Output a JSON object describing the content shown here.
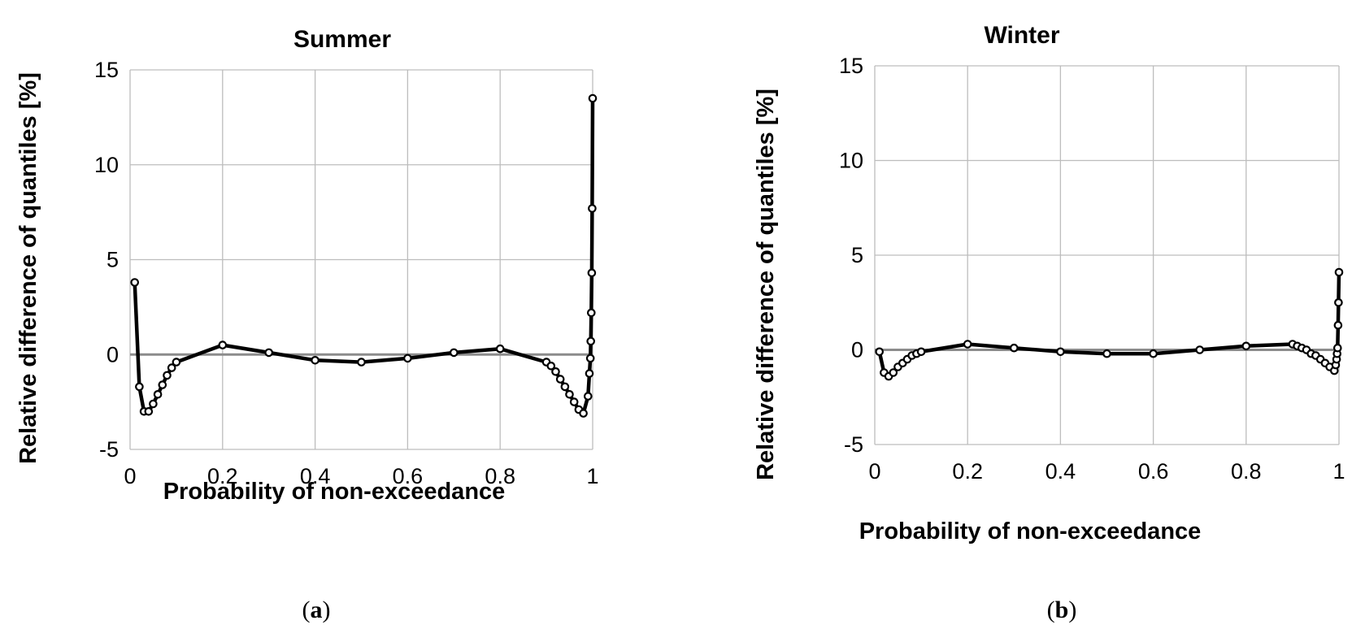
{
  "chart_data": [
    {
      "type": "line",
      "title": "Summer",
      "xlabel": "Probability of non-exceedance",
      "ylabel": "Relative difference of quantiles [%]",
      "xlim": [
        0,
        1
      ],
      "ylim": [
        -5,
        15
      ],
      "xticks": [
        "0",
        "0.2",
        "0.4",
        "0.6",
        "0.8",
        "1"
      ],
      "yticks": [
        "-5",
        "0",
        "5",
        "10",
        "15"
      ],
      "caption_letter": "a",
      "series": [
        {
          "name": "Relative difference",
          "x": [
            0.01,
            0.02,
            0.03,
            0.04,
            0.05,
            0.06,
            0.07,
            0.08,
            0.09,
            0.1,
            0.2,
            0.3,
            0.4,
            0.5,
            0.6,
            0.7,
            0.8,
            0.9,
            0.91,
            0.92,
            0.93,
            0.94,
            0.95,
            0.96,
            0.97,
            0.98,
            0.99,
            0.993,
            0.995,
            0.996,
            0.997,
            0.998,
            0.999,
            1.0
          ],
          "y": [
            3.8,
            -1.7,
            -3.0,
            -3.0,
            -2.6,
            -2.1,
            -1.6,
            -1.1,
            -0.7,
            -0.4,
            0.5,
            0.1,
            -0.3,
            -0.4,
            -0.2,
            0.1,
            0.3,
            -0.4,
            -0.6,
            -0.9,
            -1.3,
            -1.7,
            -2.1,
            -2.5,
            -2.9,
            -3.1,
            -2.2,
            -1.0,
            -0.2,
            0.7,
            2.2,
            4.3,
            7.7,
            13.5
          ]
        }
      ]
    },
    {
      "type": "line",
      "title": "Winter",
      "xlabel": "Probability of non-exceedance",
      "ylabel": "Relative difference of quantiles [%]",
      "xlim": [
        0,
        1
      ],
      "ylim": [
        -5,
        15
      ],
      "xticks": [
        "0",
        "0.2",
        "0.4",
        "0.6",
        "0.8",
        "1"
      ],
      "yticks": [
        "-5",
        "0",
        "5",
        "10",
        "15"
      ],
      "caption_letter": "b",
      "series": [
        {
          "name": "Relative difference",
          "x": [
            0.01,
            0.02,
            0.03,
            0.04,
            0.05,
            0.06,
            0.07,
            0.08,
            0.09,
            0.1,
            0.2,
            0.3,
            0.4,
            0.5,
            0.6,
            0.7,
            0.8,
            0.9,
            0.91,
            0.92,
            0.93,
            0.94,
            0.95,
            0.96,
            0.97,
            0.98,
            0.99,
            0.993,
            0.995,
            0.996,
            0.997,
            0.998,
            0.999,
            1.0
          ],
          "y": [
            -0.1,
            -1.2,
            -1.4,
            -1.2,
            -0.9,
            -0.7,
            -0.5,
            -0.3,
            -0.2,
            -0.1,
            0.3,
            0.1,
            -0.1,
            -0.2,
            -0.2,
            0.0,
            0.2,
            0.3,
            0.2,
            0.1,
            0.0,
            -0.2,
            -0.3,
            -0.5,
            -0.7,
            -0.9,
            -1.1,
            -0.8,
            -0.5,
            -0.2,
            0.1,
            1.3,
            2.5,
            4.1
          ]
        }
      ]
    }
  ]
}
